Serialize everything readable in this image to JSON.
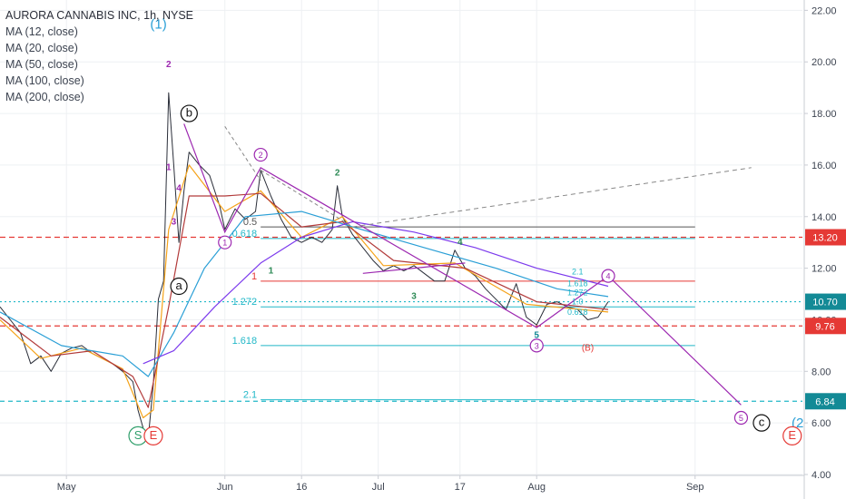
{
  "header": {
    "symbol_title": "AURORA CANNABIS INC, 1h, NYSE",
    "indicators": [
      "MA (12, close)",
      "MA (20, close)",
      "MA (50, close)",
      "MA (100, close)",
      "MA (200, close)"
    ]
  },
  "colors": {
    "ma12": "#f5a31a",
    "ma20": "#b23a3a",
    "ma50": "#2a9fd6",
    "ma100": "#7c3aed",
    "ma200": "#c026d3",
    "price": "#2a2e39",
    "fib": "#22b8c8",
    "red_level": "#e53935",
    "wave": "#9c27b0",
    "green_label": "#2e8b57",
    "axis_text": "#3d4451",
    "grid": "#eef0f3"
  },
  "chart_data": {
    "type": "line",
    "title": "AURORA CANNABIS INC, 1h, NYSE",
    "xlabel": "",
    "ylabel": "",
    "ylim": [
      4.0,
      22.4
    ],
    "y_axis_side": "right",
    "y_ticks": [
      4.0,
      6.0,
      8.0,
      10.0,
      12.0,
      14.0,
      16.0,
      18.0,
      20.0,
      22.0
    ],
    "y_tick_labels": [
      "4.00",
      "6.00",
      "8.00",
      "10.00",
      "12.00",
      "14.00",
      "16.00",
      "18.00",
      "20.00",
      "22.00"
    ],
    "x_range": [
      "2019-04-18",
      "2019-09-22"
    ],
    "x_ticks": [
      {
        "date": "2019-05-01",
        "label": "May"
      },
      {
        "date": "2019-06-01",
        "label": "Jun"
      },
      {
        "date": "2019-06-16",
        "label": "16"
      },
      {
        "date": "2019-07-01",
        "label": "Jul"
      },
      {
        "date": "2019-07-17",
        "label": "17"
      },
      {
        "date": "2019-08-01",
        "label": "Aug"
      },
      {
        "date": "2019-09-01",
        "label": "Sep"
      }
    ],
    "grid": true,
    "series": [
      {
        "name": "",
        "key": "price",
        "points": [
          [
            "2019-04-18",
            10.5
          ],
          [
            "2019-04-20",
            10.0
          ],
          [
            "2019-04-22",
            9.5
          ],
          [
            "2019-04-24",
            8.3
          ],
          [
            "2019-04-26",
            8.6
          ],
          [
            "2019-04-28",
            8.0
          ],
          [
            "2019-04-30",
            8.7
          ],
          [
            "2019-05-02",
            8.9
          ],
          [
            "2019-05-04",
            9.0
          ],
          [
            "2019-05-06",
            8.7
          ],
          [
            "2019-05-08",
            8.5
          ],
          [
            "2019-05-10",
            8.3
          ],
          [
            "2019-05-12",
            8.0
          ],
          [
            "2019-05-14",
            7.6
          ],
          [
            "2019-05-15",
            6.5
          ],
          [
            "2019-05-16",
            5.8
          ],
          [
            "2019-05-17",
            5.4
          ],
          [
            "2019-05-18",
            7.5
          ],
          [
            "2019-05-19",
            10.8
          ],
          [
            "2019-05-20",
            11.5
          ],
          [
            "2019-05-21",
            18.8
          ],
          [
            "2019-05-22",
            16.0
          ],
          [
            "2019-05-23",
            13.0
          ],
          [
            "2019-05-24",
            15.0
          ],
          [
            "2019-05-25",
            16.5
          ],
          [
            "2019-05-27",
            16.0
          ],
          [
            "2019-05-29",
            15.6
          ],
          [
            "2019-05-31",
            14.4
          ],
          [
            "2019-06-01",
            13.5
          ],
          [
            "2019-06-03",
            14.3
          ],
          [
            "2019-06-05",
            13.9
          ],
          [
            "2019-06-07",
            14.2
          ],
          [
            "2019-06-08",
            15.8
          ],
          [
            "2019-06-10",
            14.8
          ],
          [
            "2019-06-12",
            13.9
          ],
          [
            "2019-06-14",
            13.2
          ],
          [
            "2019-06-16",
            13.0
          ],
          [
            "2019-06-18",
            13.2
          ],
          [
            "2019-06-20",
            13.0
          ],
          [
            "2019-06-22",
            13.5
          ],
          [
            "2019-06-23",
            15.2
          ],
          [
            "2019-06-24",
            14.0
          ],
          [
            "2019-06-26",
            13.3
          ],
          [
            "2019-06-28",
            12.8
          ],
          [
            "2019-06-30",
            12.3
          ],
          [
            "2019-07-02",
            11.9
          ],
          [
            "2019-07-04",
            12.1
          ],
          [
            "2019-07-06",
            11.9
          ],
          [
            "2019-07-08",
            12.1
          ],
          [
            "2019-07-10",
            11.8
          ],
          [
            "2019-07-12",
            11.5
          ],
          [
            "2019-07-14",
            11.5
          ],
          [
            "2019-07-16",
            12.7
          ],
          [
            "2019-07-18",
            12.0
          ],
          [
            "2019-07-20",
            11.7
          ],
          [
            "2019-07-22",
            11.2
          ],
          [
            "2019-07-24",
            10.8
          ],
          [
            "2019-07-26",
            10.4
          ],
          [
            "2019-07-28",
            11.4
          ],
          [
            "2019-07-30",
            10.1
          ],
          [
            "2019-08-01",
            9.8
          ],
          [
            "2019-08-03",
            10.6
          ],
          [
            "2019-08-05",
            10.7
          ],
          [
            "2019-08-07",
            10.5
          ],
          [
            "2019-08-09",
            10.4
          ],
          [
            "2019-08-11",
            10.0
          ],
          [
            "2019-08-13",
            10.1
          ],
          [
            "2019-08-15",
            10.7
          ]
        ]
      },
      {
        "name": "MA (12, close)",
        "key": "ma12",
        "points": [
          [
            "2019-04-18",
            10.0
          ],
          [
            "2019-04-26",
            8.5
          ],
          [
            "2019-05-04",
            8.9
          ],
          [
            "2019-05-12",
            8.1
          ],
          [
            "2019-05-16",
            6.2
          ],
          [
            "2019-05-18",
            6.5
          ],
          [
            "2019-05-21",
            13.5
          ],
          [
            "2019-05-25",
            16.0
          ],
          [
            "2019-06-01",
            14.2
          ],
          [
            "2019-06-08",
            15.0
          ],
          [
            "2019-06-16",
            13.2
          ],
          [
            "2019-06-24",
            14.0
          ],
          [
            "2019-07-02",
            12.1
          ],
          [
            "2019-07-16",
            12.2
          ],
          [
            "2019-07-30",
            10.6
          ],
          [
            "2019-08-15",
            10.3
          ]
        ]
      },
      {
        "name": "MA (20, close)",
        "key": "ma20",
        "points": [
          [
            "2019-04-18",
            10.1
          ],
          [
            "2019-04-28",
            8.6
          ],
          [
            "2019-05-06",
            8.8
          ],
          [
            "2019-05-14",
            7.8
          ],
          [
            "2019-05-17",
            6.6
          ],
          [
            "2019-05-21",
            10.5
          ],
          [
            "2019-05-25",
            14.8
          ],
          [
            "2019-06-01",
            14.8
          ],
          [
            "2019-06-08",
            14.9
          ],
          [
            "2019-06-16",
            13.6
          ],
          [
            "2019-06-24",
            13.8
          ],
          [
            "2019-07-04",
            12.3
          ],
          [
            "2019-07-18",
            12.0
          ],
          [
            "2019-08-01",
            10.7
          ],
          [
            "2019-08-15",
            10.4
          ]
        ]
      },
      {
        "name": "MA (50, close)",
        "key": "ma50",
        "points": [
          [
            "2019-04-18",
            10.3
          ],
          [
            "2019-04-30",
            9.0
          ],
          [
            "2019-05-12",
            8.6
          ],
          [
            "2019-05-17",
            7.8
          ],
          [
            "2019-05-22",
            9.5
          ],
          [
            "2019-05-28",
            12.0
          ],
          [
            "2019-06-05",
            14.0
          ],
          [
            "2019-06-16",
            14.2
          ],
          [
            "2019-06-26",
            13.6
          ],
          [
            "2019-07-10",
            12.8
          ],
          [
            "2019-07-24",
            12.0
          ],
          [
            "2019-08-05",
            11.2
          ],
          [
            "2019-08-15",
            10.9
          ]
        ]
      },
      {
        "name": "MA (100, close)",
        "key": "ma100",
        "points": [
          [
            "2019-05-16",
            8.3
          ],
          [
            "2019-05-22",
            8.8
          ],
          [
            "2019-05-30",
            10.5
          ],
          [
            "2019-06-08",
            12.2
          ],
          [
            "2019-06-16",
            13.2
          ],
          [
            "2019-06-26",
            13.8
          ],
          [
            "2019-07-08",
            13.4
          ],
          [
            "2019-07-20",
            12.8
          ],
          [
            "2019-08-01",
            12.0
          ],
          [
            "2019-08-15",
            11.3
          ]
        ]
      }
    ],
    "horizontal_levels": [
      {
        "price": 13.2,
        "label": "13.20",
        "style": "red-dashed"
      },
      {
        "price": 9.76,
        "label": "9.76",
        "style": "red-dashed"
      },
      {
        "price": 10.7,
        "label": "10.70",
        "style": "teal-dotted"
      },
      {
        "price": 6.84,
        "label": "6.84",
        "style": "teal-dashed"
      }
    ],
    "fib_retracement_labels": [
      "0.5",
      "0.618",
      "1"
    ],
    "fib_extension_labels": [
      "1.272",
      "1.618",
      "2.1"
    ],
    "fib_levels": [
      {
        "price": 13.6,
        "label": "0.5",
        "from": "2019-06-08",
        "to": "2019-09-01",
        "color": "#555555"
      },
      {
        "price": 13.15,
        "label": "0.618",
        "from": "2019-06-08",
        "to": "2019-09-01",
        "color": "#22b8c8"
      },
      {
        "price": 11.5,
        "label": "1",
        "from": "2019-06-08",
        "to": "2019-09-01",
        "color": "#e53935"
      },
      {
        "price": 10.5,
        "label": "1.272",
        "from": "2019-06-08",
        "to": "2019-09-01",
        "color": "#22b8c8"
      },
      {
        "price": 9.0,
        "label": "1.618",
        "from": "2019-06-08",
        "to": "2019-09-01",
        "color": "#22b8c8"
      },
      {
        "price": 6.9,
        "label": "2.1",
        "from": "2019-06-08",
        "to": "2019-09-01",
        "color": "#22b8c8"
      }
    ],
    "small_fib_labels": [
      "2.1",
      "1.618",
      "1.272",
      "1.0",
      "0.618"
    ],
    "annotations": {
      "wave_labels": [
        "(1)",
        "(2",
        "b",
        "a",
        "c",
        "(B)",
        "S",
        "E",
        "E"
      ],
      "circled_numbers": [
        "1",
        "2",
        "3",
        "4",
        "5"
      ],
      "plain_numbers": [
        "1",
        "2",
        "3",
        "4",
        "5"
      ]
    }
  }
}
